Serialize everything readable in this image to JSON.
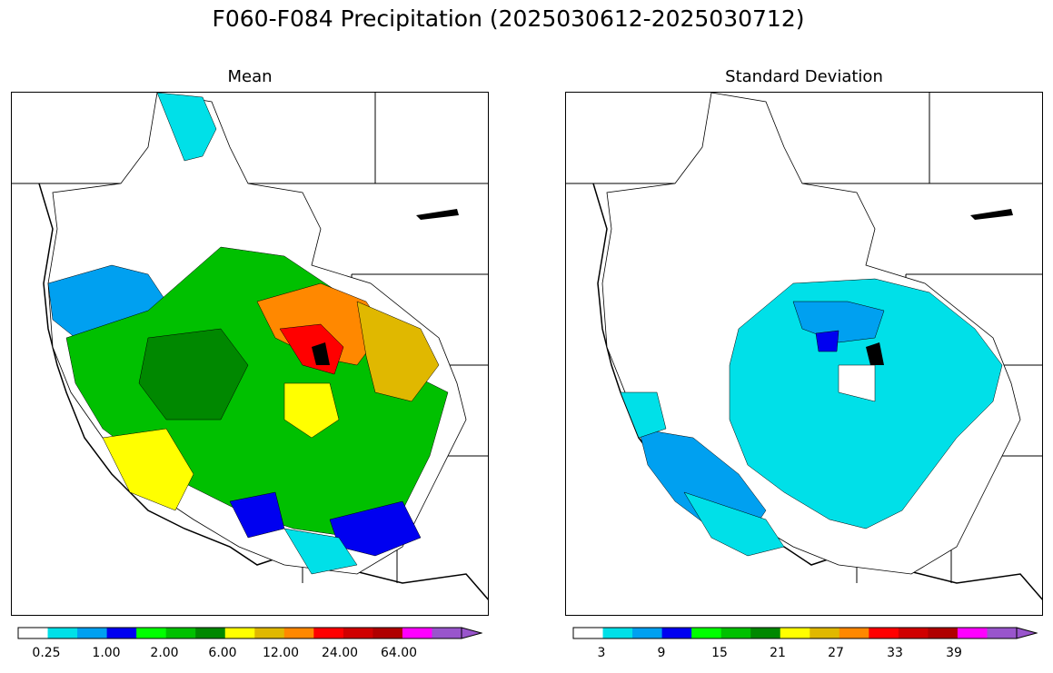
{
  "title": "F060-F084 Precipitation (2025030612-2025030712)",
  "panels": [
    {
      "title": "Mean",
      "colorbar": {
        "colors": [
          "#ffffff",
          "#00e0e8",
          "#00a0f0",
          "#0000f0",
          "#00ff00",
          "#00c000",
          "#008800",
          "#ffff00",
          "#e0b800",
          "#ff8800",
          "#ff0000",
          "#d00000",
          "#b00000",
          "#ff00ff",
          "#9955cc"
        ],
        "tick_labels": [
          "0.25",
          "1.00",
          "2.00",
          "6.00",
          "12.00",
          "24.00",
          "64.00"
        ],
        "extend": "max"
      }
    },
    {
      "title": "Standard Deviation",
      "colorbar": {
        "colors": [
          "#ffffff",
          "#00e0e8",
          "#00a0f0",
          "#0000f0",
          "#00ff00",
          "#00c000",
          "#008800",
          "#ffff00",
          "#e0b800",
          "#ff8800",
          "#ff0000",
          "#d00000",
          "#b00000",
          "#ff00ff",
          "#9955cc"
        ],
        "tick_labels": [
          "3",
          "9",
          "15",
          "21",
          "27",
          "33",
          "39"
        ],
        "extend": "max"
      }
    }
  ]
}
